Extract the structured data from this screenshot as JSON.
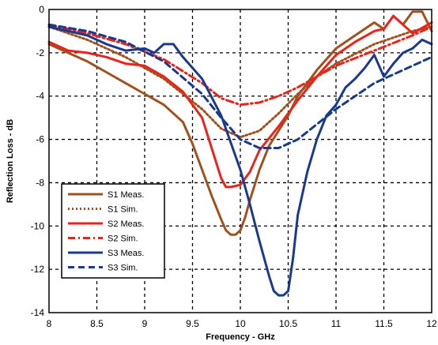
{
  "chart_data": {
    "type": "line",
    "title": "",
    "xlabel": "Frequency - GHz",
    "ylabel": "Reflection Loss - dB",
    "xlim": [
      8,
      12
    ],
    "ylim": [
      -14,
      0
    ],
    "xticks": [
      "8",
      "8.5",
      "9",
      "9.5",
      "10",
      "10.5",
      "11",
      "11.5",
      "12"
    ],
    "yticks": [
      "0",
      "-2",
      "-4",
      "-6",
      "-8",
      "-10",
      "-12",
      "-14"
    ],
    "grid": "dashed",
    "legend_position": "lower-left",
    "series": [
      {
        "name": "S1 Meas.",
        "color": "#a0521e",
        "style": "solid",
        "x": [
          8.0,
          8.2,
          8.4,
          8.6,
          8.8,
          9.0,
          9.2,
          9.4,
          9.5,
          9.6,
          9.7,
          9.8,
          9.85,
          9.9,
          9.95,
          10.0,
          10.05,
          10.1,
          10.2,
          10.3,
          10.4,
          10.5,
          10.6,
          10.8,
          11.0,
          11.2,
          11.4,
          11.5,
          11.6,
          11.7,
          11.8,
          11.9,
          12.0
        ],
        "y": [
          -1.6,
          -2.0,
          -2.4,
          -2.9,
          -3.4,
          -3.9,
          -4.4,
          -5.2,
          -6.2,
          -7.4,
          -8.6,
          -9.7,
          -10.2,
          -10.4,
          -10.4,
          -10.2,
          -9.6,
          -8.8,
          -7.4,
          -6.3,
          -5.6,
          -4.9,
          -4.0,
          -2.8,
          -1.8,
          -1.2,
          -0.6,
          -0.9,
          -0.3,
          -0.7,
          -0.1,
          -0.1,
          -1.0
        ]
      },
      {
        "name": "S1 Sim.",
        "color": "#a0521e",
        "style": "dotted",
        "x": [
          8.0,
          8.4,
          8.8,
          9.2,
          9.6,
          9.8,
          10.0,
          10.2,
          10.4,
          10.6,
          10.8,
          11.0,
          11.4,
          11.8,
          12.0
        ],
        "y": [
          -0.8,
          -1.4,
          -2.2,
          -3.2,
          -4.6,
          -5.5,
          -5.9,
          -5.6,
          -4.8,
          -3.9,
          -3.1,
          -2.5,
          -1.6,
          -1.0,
          -0.8
        ]
      },
      {
        "name": "S2 Meas.",
        "color": "#e8241c",
        "style": "solid",
        "x": [
          8.0,
          8.2,
          8.4,
          8.6,
          8.8,
          9.0,
          9.2,
          9.4,
          9.6,
          9.7,
          9.8,
          9.85,
          9.9,
          10.0,
          10.1,
          10.2,
          10.4,
          10.6,
          10.8,
          11.0,
          11.2,
          11.4,
          11.5,
          11.6,
          11.8,
          12.0
        ],
        "y": [
          -1.5,
          -1.9,
          -2.0,
          -2.2,
          -2.5,
          -2.6,
          -3.1,
          -3.8,
          -5.0,
          -6.4,
          -7.8,
          -8.2,
          -8.2,
          -8.1,
          -7.5,
          -6.5,
          -5.4,
          -4.2,
          -3.1,
          -2.1,
          -1.5,
          -1.0,
          -0.9,
          -0.3,
          -1.1,
          -0.6
        ]
      },
      {
        "name": "S2 Sim.",
        "color": "#e8241c",
        "style": "dashdot",
        "x": [
          8.0,
          8.4,
          8.8,
          9.2,
          9.6,
          9.8,
          10.0,
          10.2,
          10.4,
          10.6,
          10.8,
          11.0,
          11.4,
          11.8,
          12.0
        ],
        "y": [
          -0.7,
          -1.1,
          -1.6,
          -2.3,
          -3.4,
          -4.1,
          -4.4,
          -4.3,
          -4.0,
          -3.6,
          -3.1,
          -2.6,
          -1.9,
          -1.2,
          -0.8
        ]
      },
      {
        "name": "S3 Meas.",
        "color": "#1a3a8c",
        "style": "solid",
        "x": [
          8.0,
          8.2,
          8.4,
          8.6,
          8.8,
          9.0,
          9.1,
          9.2,
          9.3,
          9.4,
          9.6,
          9.8,
          10.0,
          10.1,
          10.2,
          10.3,
          10.35,
          10.4,
          10.45,
          10.5,
          10.55,
          10.6,
          10.7,
          10.8,
          10.9,
          11.0,
          11.1,
          11.2,
          11.3,
          11.4,
          11.5,
          11.6,
          11.7,
          11.8,
          11.9,
          12.0
        ],
        "y": [
          -0.8,
          -1.0,
          -1.2,
          -1.6,
          -1.9,
          -1.8,
          -2.0,
          -1.6,
          -1.6,
          -2.2,
          -3.2,
          -4.9,
          -7.4,
          -9.0,
          -10.7,
          -12.3,
          -13.0,
          -13.2,
          -13.2,
          -13.0,
          -11.5,
          -9.5,
          -7.5,
          -6.0,
          -4.9,
          -4.4,
          -3.6,
          -3.2,
          -2.7,
          -2.1,
          -3.1,
          -2.5,
          -2.0,
          -1.8,
          -1.4,
          -1.6
        ]
      },
      {
        "name": "S3 Sim.",
        "color": "#1a3a8c",
        "style": "dashed",
        "x": [
          8.0,
          8.4,
          8.8,
          9.2,
          9.6,
          9.8,
          10.0,
          10.2,
          10.4,
          10.6,
          10.8,
          11.0,
          11.4,
          11.8,
          12.0
        ],
        "y": [
          -0.7,
          -1.0,
          -1.5,
          -2.4,
          -3.9,
          -5.0,
          -6.0,
          -6.4,
          -6.4,
          -6.0,
          -5.3,
          -4.6,
          -3.4,
          -2.6,
          -2.2
        ]
      }
    ]
  }
}
